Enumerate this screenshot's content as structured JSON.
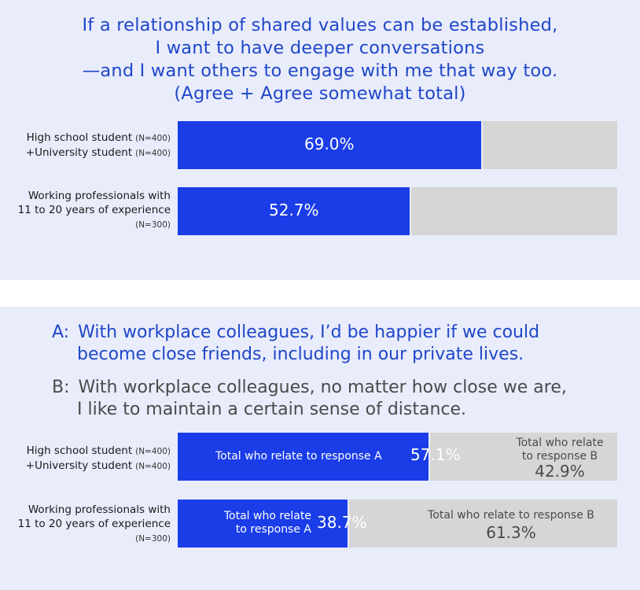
{
  "chart_data": [
    {
      "type": "bar",
      "title_lines": [
        "If a relationship of shared values can be established,",
        "I want to have deeper conversations",
        "—and I want others to engage with me that way too.",
        "(Agree + Agree somewhat total)"
      ],
      "rows": [
        {
          "label_lines": [
            "High school student",
            "+University student"
          ],
          "n_labels": [
            "(N=400)",
            "(N=400)"
          ],
          "value": 69.0,
          "value_label": "69.0%"
        },
        {
          "label_lines": [
            "Working professionals with",
            "11 to 20 years of experience"
          ],
          "n_labels": [
            "(N=300)"
          ],
          "value": 52.7,
          "value_label": "52.7%"
        }
      ],
      "xlim": [
        0,
        100
      ],
      "colors": {
        "value": "#1a3de8",
        "remainder": "#d6d6d6"
      }
    },
    {
      "type": "bar",
      "stacked": true,
      "statements": [
        {
          "marker": "A:",
          "lines": [
            "With workplace colleagues, I’d be happier if we could",
            "become close friends, including in our private lives."
          ]
        },
        {
          "marker": "B:",
          "lines": [
            "With workplace colleagues, no matter how close we are,",
            "I like to maintain a certain sense of distance."
          ]
        }
      ],
      "rows": [
        {
          "label_lines": [
            "High school student",
            "+University student"
          ],
          "n_labels": [
            "(N=400)",
            "(N=400)"
          ],
          "a_value": 57.1,
          "a_value_label": "57.1%",
          "a_label_lines": [
            "Total who relate to response A"
          ],
          "b_value": 42.9,
          "b_value_label": "42.9%",
          "b_label_lines": [
            "Total who relate",
            "to response B"
          ]
        },
        {
          "label_lines": [
            "Working professionals with",
            "11 to 20 years of experience"
          ],
          "n_labels": [
            "(N=300)"
          ],
          "a_value": 38.7,
          "a_value_label": "38.7%",
          "a_label_lines": [
            "Total who relate",
            "to response A"
          ],
          "b_value": 61.3,
          "b_value_label": "61.3%",
          "b_label_lines": [
            "Total who relate to response B"
          ]
        }
      ],
      "xlim": [
        0,
        100
      ],
      "colors": {
        "a": "#1a3de8",
        "b": "#d6d6d6",
        "a_text": "#1f47c8",
        "b_text": "#4a4a4a"
      }
    }
  ]
}
